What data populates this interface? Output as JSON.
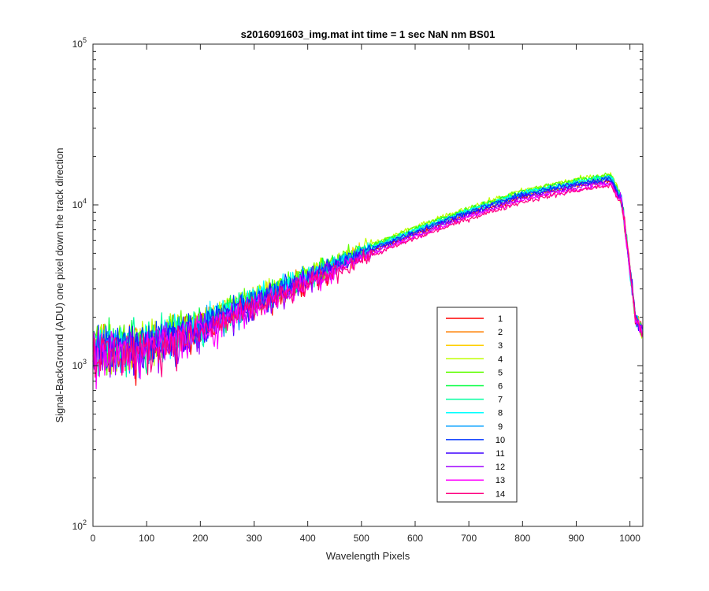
{
  "chart_data": {
    "type": "line",
    "title": "s2016091603_img.mat int time = 1 sec  NaN nm BS01",
    "xlabel": "Wavelength Pixels",
    "ylabel": "Signal-BackGround (ADU) one pixel down the track direction",
    "xlim": [
      0,
      1024
    ],
    "ylim": [
      100,
      100000
    ],
    "yscale": "log",
    "x_ticks": [
      0,
      100,
      200,
      300,
      400,
      500,
      600,
      700,
      800,
      900,
      1000
    ],
    "x_tick_labels": [
      "0",
      "100",
      "200",
      "300",
      "400",
      "500",
      "600",
      "700",
      "800",
      "900",
      "1000"
    ],
    "y_ticks": [
      100,
      1000,
      10000,
      100000
    ],
    "y_tick_labels": [
      {
        "base": "10",
        "exp": "2"
      },
      {
        "base": "10",
        "exp": "3"
      },
      {
        "base": "10",
        "exp": "4"
      },
      {
        "base": "10",
        "exp": "5"
      }
    ],
    "legend_position": "lower-right",
    "shape_points": {
      "x": [
        0,
        100,
        200,
        300,
        400,
        500,
        600,
        700,
        800,
        900,
        950,
        965,
        985,
        1000,
        1010,
        1024
      ],
      "y": [
        1300,
        1350,
        1750,
        2500,
        3500,
        5000,
        6800,
        9000,
        11500,
        13500,
        14300,
        14500,
        10500,
        4000,
        2000,
        1600
      ]
    },
    "series": [
      {
        "name": "1",
        "color": "#ff0000",
        "scale": 0.97
      },
      {
        "name": "2",
        "color": "#ff7f00",
        "scale": 1.0
      },
      {
        "name": "3",
        "color": "#ffcf00",
        "scale": 1.03
      },
      {
        "name": "4",
        "color": "#bfff00",
        "scale": 1.07
      },
      {
        "name": "5",
        "color": "#5fff00",
        "scale": 1.06
      },
      {
        "name": "6",
        "color": "#00ff3f",
        "scale": 1.04
      },
      {
        "name": "7",
        "color": "#00ff9f",
        "scale": 1.02
      },
      {
        "name": "8",
        "color": "#00ffff",
        "scale": 1.03
      },
      {
        "name": "9",
        "color": "#009fff",
        "scale": 1.0
      },
      {
        "name": "10",
        "color": "#0033ff",
        "scale": 1.01
      },
      {
        "name": "11",
        "color": "#3f00ff",
        "scale": 0.98
      },
      {
        "name": "12",
        "color": "#9f00ff",
        "scale": 0.95
      },
      {
        "name": "13",
        "color": "#ff00ff",
        "scale": 0.93
      },
      {
        "name": "14",
        "color": "#ff0080",
        "scale": 0.91
      }
    ]
  }
}
